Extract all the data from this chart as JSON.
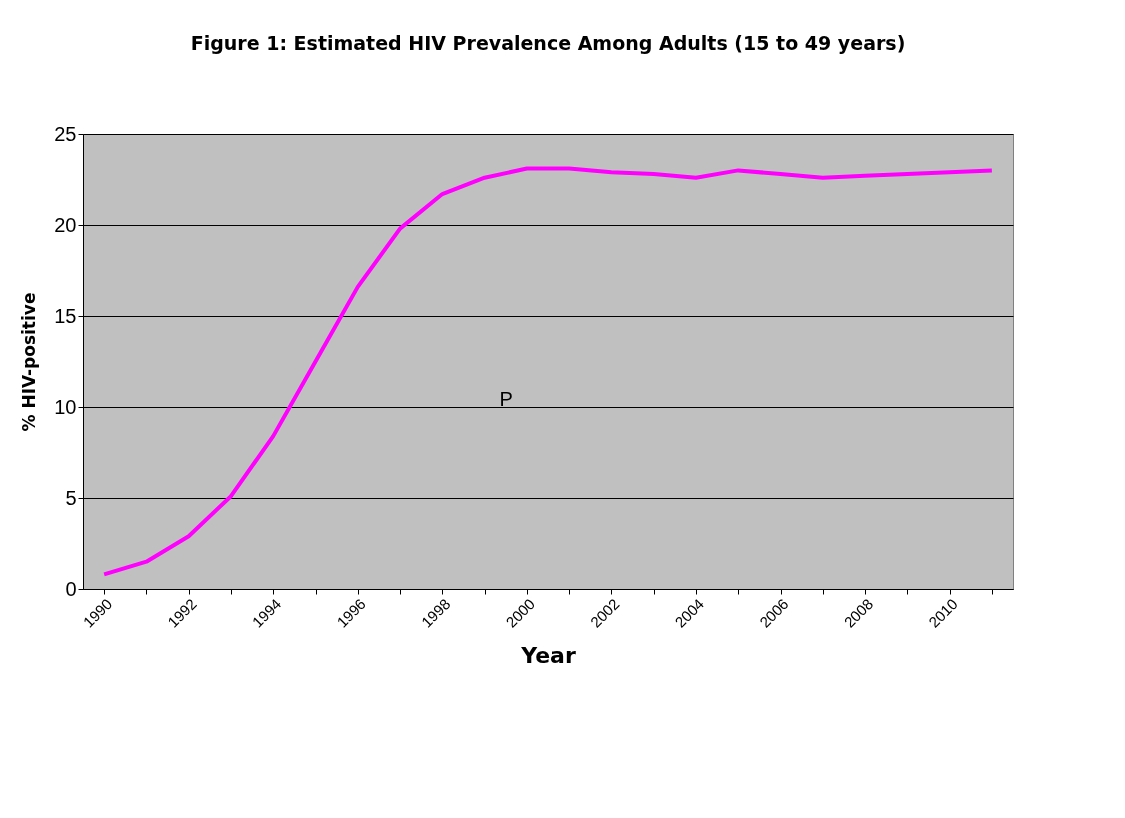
{
  "chart_data": {
    "type": "line",
    "title": "Figure 1:  Estimated HIV Prevalence Among  Adults (15 to 49 years)",
    "xlabel": "Year",
    "ylabel": "% HIV-positive",
    "categories": [
      "1990",
      null,
      "1992",
      null,
      "1994",
      null,
      "1996",
      null,
      "1998",
      null,
      "2000",
      null,
      "2002",
      null,
      "2004",
      null,
      "2006",
      null,
      "2008",
      null,
      "2010",
      null
    ],
    "series": [
      {
        "color": "#ff00ff",
        "values": [
          0.8,
          1.5,
          2.9,
          5.1,
          8.4,
          12.5,
          16.6,
          19.8,
          21.7,
          22.6,
          23.1,
          23.1,
          22.9,
          22.8,
          22.6,
          23.0,
          22.8,
          22.6,
          22.7,
          22.8,
          22.9,
          23.0
        ]
      }
    ],
    "ylim": [
      0,
      25
    ],
    "yticks": [
      0,
      5,
      10,
      15,
      20,
      25
    ],
    "grid": "y",
    "marker": "none",
    "line_style": "solid",
    "annotations": [
      "P"
    ]
  }
}
